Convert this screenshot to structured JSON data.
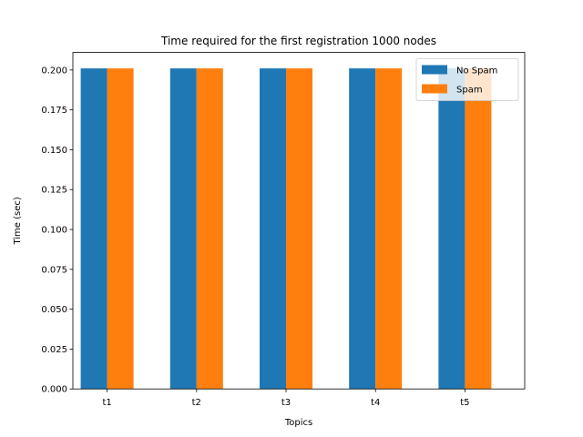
{
  "chart_data": {
    "type": "bar",
    "title": "Time required for the first registration 1000 nodes",
    "xlabel": "Topics",
    "ylabel": "Time (sec)",
    "categories": [
      "t1",
      "t2",
      "t3",
      "t4",
      "t5"
    ],
    "series": [
      {
        "name": "No Spam",
        "color": "#1f77b4",
        "values": [
          0.201,
          0.201,
          0.201,
          0.201,
          0.201
        ]
      },
      {
        "name": "Spam",
        "color": "#ff7f0e",
        "values": [
          0.201,
          0.201,
          0.201,
          0.201,
          0.201
        ]
      }
    ],
    "ylim": [
      0,
      0.211
    ],
    "yticks": [
      "0.000",
      "0.025",
      "0.050",
      "0.075",
      "0.100",
      "0.125",
      "0.150",
      "0.175",
      "0.200"
    ],
    "legend_position": "top-right",
    "grid": false
  }
}
